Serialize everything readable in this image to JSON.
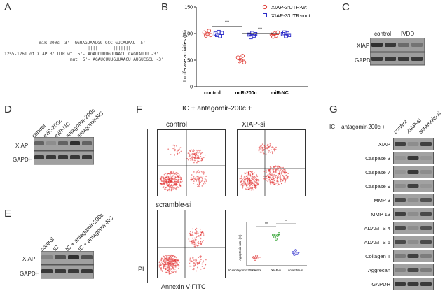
{
  "panels": {
    "A": {
      "letter": "A",
      "lines": [
        "miR-200c  3'- GGUAGUAAUGG GCC GUCAUAAU -5'",
        "                                 ||||      |||||||",
        "1255-1261 of XIAP 3' UTR wt  5'- AGAUCUUUGUUAACU CAGUAUUU -3'",
        "                          mut  5'- AGAUCUUUGUUAACU AUGUCGCU -3'"
      ]
    },
    "B": {
      "letter": "B",
      "ylabel": "Luciferase activities (%)",
      "legend": [
        "XIAP-3'UTR-wt",
        "XIAP-3'UTR-mut"
      ],
      "sig": [
        "**",
        "**"
      ],
      "wt_color": "#e0403a",
      "mut_color": "#2a2ac8"
    },
    "C": {
      "letter": "C",
      "groups": [
        "control",
        "IVDD"
      ],
      "rows": [
        "XIAP",
        "GAPDH"
      ]
    },
    "D": {
      "letter": "D",
      "lanes": [
        "control",
        "miR-200c",
        "miR-NC",
        "antagomir-200c",
        "antagomir-NC"
      ],
      "rows": [
        "XIAP",
        "GAPDH"
      ]
    },
    "E": {
      "letter": "E",
      "lanes": [
        "control",
        "IC",
        "IC + antagomir-200c",
        "IC + antagomir-NC"
      ],
      "rows": [
        "XIAP",
        "GAPDH"
      ]
    },
    "F": {
      "letter": "F",
      "title": "IC + antagomir-200c +",
      "plots": [
        "control",
        "XIAP-si",
        "scramble-si"
      ],
      "xaxis": "Annexin V-FITC",
      "yaxis": "PI",
      "inset": {
        "ylabel": "Apoptosis rate (%)",
        "rowlabel": "IC+antagomir-200c+",
        "cats": [
          "control",
          "XIAP-si",
          "scramble-si"
        ],
        "sig": [
          "**",
          "**"
        ]
      }
    },
    "G": {
      "letter": "G",
      "title": "IC + antagomir-200c +",
      "lanes": [
        "control",
        "XIAP-si",
        "scramble-si"
      ],
      "rows": [
        "XIAP",
        "Caspase 3",
        "Caspase 7",
        "Caspase 9",
        "MMP 3",
        "MMP 13",
        "ADAMTS 4",
        "ADAMTS 5",
        "Collagen II",
        "Aggrecan",
        "GAPDH"
      ]
    }
  },
  "chart_data": {
    "type": "scatter",
    "ylabel": "Luciferase activities (%)",
    "categories": [
      "control",
      "miR-200c",
      "miR-NC"
    ],
    "ylim": [
      0,
      150
    ],
    "yticks": [
      "0",
      "50",
      "100",
      "150"
    ],
    "series": [
      {
        "name": "XIAP-3'UTR-wt",
        "values": [
          [
            102,
            96,
            99,
            105,
            97
          ],
          [
            55,
            48,
            50,
            58,
            46
          ],
          [
            98,
            94,
            100,
            96,
            102
          ]
        ]
      },
      {
        "name": "XIAP-3'UTR-mut",
        "values": [
          [
            100,
            97,
            103,
            95,
            101
          ],
          [
            98,
            93,
            101,
            96,
            99
          ],
          [
            99,
            102,
            95,
            100,
            97
          ]
        ]
      }
    ]
  }
}
